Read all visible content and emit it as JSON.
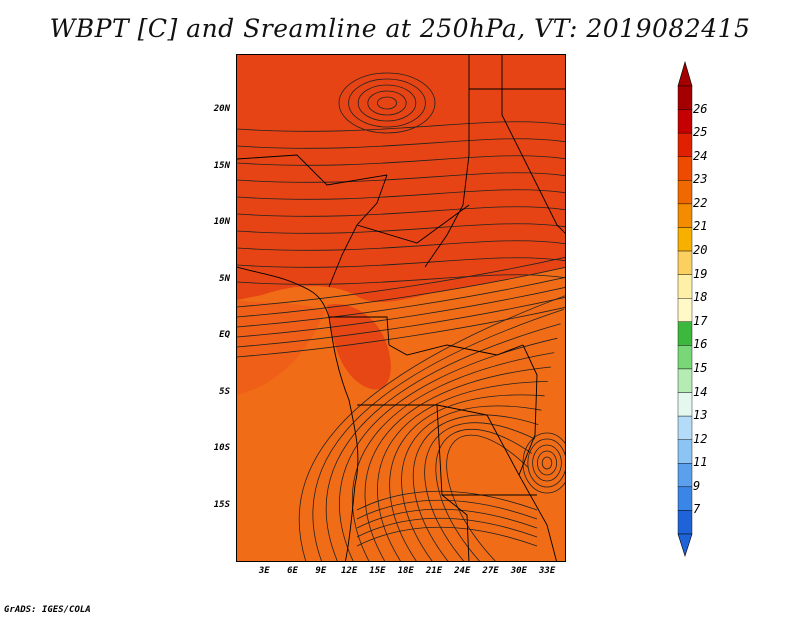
{
  "title": "WBPT [C] and Sreamline at 250hPa, VT: 2019082415",
  "footer": "GrADS: IGES/COLA",
  "map": {
    "lon_range": [
      0,
      35
    ],
    "lat_range": [
      -20,
      25
    ],
    "lat_labels": [
      "20N",
      "15N",
      "10N",
      "5N",
      "EQ",
      "5S",
      "10S",
      "15S"
    ],
    "lat_values": [
      20,
      15,
      10,
      5,
      0,
      -5,
      -10,
      -15
    ],
    "lon_labels": [
      "3E",
      "6E",
      "9E",
      "12E",
      "15E",
      "18E",
      "21E",
      "24E",
      "27E",
      "30E",
      "33E"
    ],
    "lon_values": [
      3,
      6,
      9,
      12,
      15,
      18,
      21,
      24,
      27,
      30,
      33
    ]
  },
  "colorbar": {
    "labels": [
      "26",
      "25",
      "24",
      "23",
      "22",
      "21",
      "20",
      "19",
      "18",
      "17",
      "16",
      "15",
      "14",
      "13",
      "12",
      "11",
      "9",
      "7"
    ],
    "colors": [
      "#a50000",
      "#c40000",
      "#e02000",
      "#ee4a00",
      "#f06800",
      "#f48c00",
      "#f8b000",
      "#fcd060",
      "#fff0a8",
      "#fff9c8",
      "#3cb83c",
      "#78d878",
      "#b4ecb4",
      "#e4f8f0",
      "#b4dcf8",
      "#8cc4f4",
      "#5aa0ec",
      "#3a86e6",
      "#1e64d8"
    ],
    "top_color": "#a50000",
    "bottom_color": "#1e64d8"
  },
  "field_colors": {
    "dark": "#e64414",
    "mid": "#ee5a1a",
    "light": "#f06c16"
  }
}
